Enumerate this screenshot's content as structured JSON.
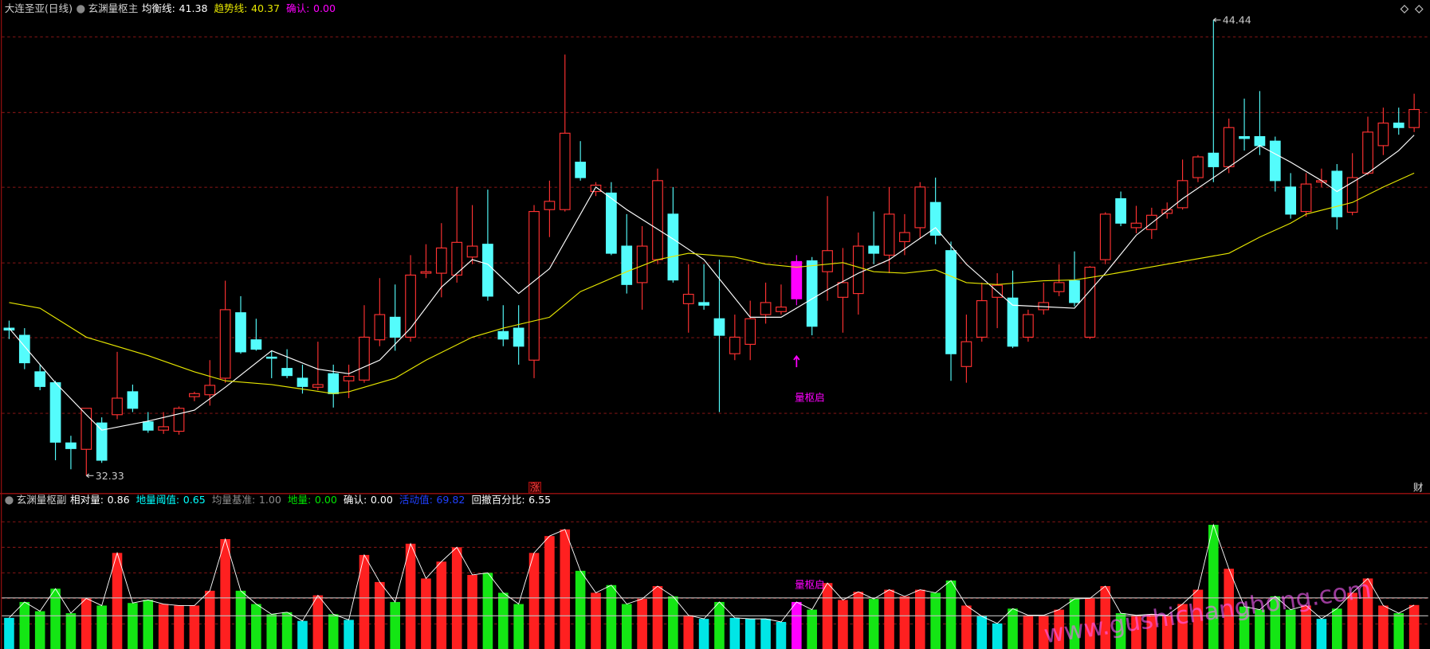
{
  "chart_data": [
    {
      "type": "candlestick",
      "title": "大连圣亚(日线)",
      "subtitle": "玄渊量枢主",
      "indicators": [
        {
          "name": "均衡线:",
          "value": 41.38,
          "color": "#ffffff",
          "x": [
            0,
            3,
            5,
            6,
            9,
            12,
            14,
            17,
            20,
            22,
            24,
            26,
            28,
            30,
            31,
            33,
            35,
            38,
            40,
            43,
            45,
            48,
            50,
            53,
            55,
            57,
            60,
            62,
            65,
            69,
            71,
            73,
            76,
            78,
            81,
            83,
            85,
            86,
            88,
            90,
            91
          ],
          "values": [
            36.25,
            34.8,
            33.95,
            33.54,
            33.78,
            34.07,
            34.68,
            35.65,
            35.16,
            35.04,
            35.4,
            36.25,
            37.34,
            38.07,
            37.95,
            37.17,
            37.83,
            40.0,
            39.4,
            38.62,
            38.07,
            36.54,
            36.54,
            37.27,
            37.71,
            38.07,
            38.92,
            37.95,
            36.86,
            36.78,
            37.71,
            38.72,
            39.69,
            40.25,
            41.1,
            40.66,
            40.17,
            39.88,
            40.37,
            40.97,
            41.38
          ]
        },
        {
          "name": "趋势线:",
          "value": 40.37,
          "color": "#e6e600",
          "x": [
            0,
            2,
            5,
            9,
            12,
            14,
            17,
            21,
            22,
            25,
            27,
            30,
            32,
            35,
            37,
            40,
            42,
            44,
            47,
            49,
            51,
            54,
            56,
            58,
            60,
            62,
            64,
            67,
            69,
            71,
            75,
            79,
            81,
            83,
            84,
            87,
            89,
            91
          ],
          "values": [
            36.93,
            36.78,
            36.01,
            35.52,
            35.09,
            34.85,
            34.75,
            34.51,
            34.56,
            34.92,
            35.4,
            36.01,
            36.25,
            36.54,
            37.22,
            37.75,
            38.07,
            38.24,
            38.14,
            37.95,
            37.87,
            37.99,
            37.75,
            37.71,
            37.8,
            37.46,
            37.41,
            37.51,
            37.53,
            37.66,
            37.95,
            38.24,
            38.67,
            39.04,
            39.28,
            39.59,
            40.0,
            40.37
          ]
        },
        {
          "name": "确认:",
          "value": 0,
          "value_label": "0.00",
          "color": "#ff00ff"
        }
      ],
      "open": [
        36.25,
        36.06,
        35.09,
        34.8,
        33.2,
        33.03,
        33.73,
        33.95,
        34.56,
        33.76,
        33.54,
        33.51,
        34.43,
        34.48,
        34.92,
        36.66,
        35.94,
        35.48,
        35.18,
        34.92,
        34.68,
        35.04,
        34.85,
        34.87,
        35.94,
        36.54,
        36.01,
        37.71,
        37.71,
        37.66,
        38.14,
        38.48,
        36.16,
        36.25,
        35.4,
        39.4,
        39.4,
        40.66,
        39.88,
        39.84,
        38.43,
        37.46,
        38.07,
        39.28,
        36.9,
        36.93,
        36.5,
        35.57,
        35.82,
        36.61,
        36.69,
        37.03,
        38.04,
        37.75,
        37.07,
        37.17,
        38.43,
        38.19,
        38.55,
        38.92,
        39.59,
        38.31,
        35.23,
        36.01,
        37.07,
        37.05,
        36.01,
        36.74,
        37.22,
        37.51,
        36.01,
        38.07,
        39.69,
        38.92,
        38.87,
        39.3,
        39.45,
        40.25,
        40.9,
        40.54,
        41.34,
        41.34,
        41.22,
        40.0,
        39.35,
        40.13,
        40.42,
        39.33,
        40.37,
        41.1,
        41.7,
        41.58
      ],
      "high": [
        36.45,
        36.25,
        35.28,
        34.85,
        33.39,
        34.12,
        33.88,
        35.62,
        34.75,
        34.02,
        34.02,
        34.17,
        34.56,
        35.4,
        37.51,
        37.1,
        36.5,
        35.65,
        35.69,
        35.28,
        35.89,
        35.28,
        35.28,
        36.86,
        37.58,
        37.41,
        38.19,
        38.48,
        39.04,
        40.0,
        39.52,
        39.93,
        36.86,
        36.86,
        39.52,
        40.17,
        43.52,
        41.22,
        40.13,
        40.13,
        39.28,
        38.96,
        40.49,
        40.0,
        37.95,
        37.95,
        38.07,
        36.61,
        36.98,
        37.46,
        37.41,
        38.19,
        38.14,
        39.76,
        38.38,
        38.79,
        39.35,
        40.0,
        39.28,
        40.13,
        40.25,
        38.55,
        36.61,
        37.46,
        37.71,
        37.78,
        36.74,
        37.46,
        37.95,
        38.29,
        37.9,
        39.33,
        39.88,
        39.5,
        39.45,
        39.59,
        40.73,
        40.85,
        44.44,
        41.82,
        42.35,
        42.55,
        41.34,
        40.37,
        40.37,
        40.49,
        40.61,
        40.9,
        41.87,
        42.11,
        42.11,
        42.48
      ],
      "low": [
        35.96,
        35.16,
        34.6,
        32.74,
        32.5,
        32.33,
        32.67,
        33.83,
        34.02,
        33.47,
        33.44,
        33.42,
        34.31,
        34.19,
        34.8,
        35.57,
        35.65,
        34.92,
        34.92,
        34.51,
        34.6,
        34.14,
        34.39,
        34.8,
        35.77,
        35.65,
        35.89,
        37.58,
        37.07,
        37.46,
        37.95,
        36.98,
        35.77,
        35.28,
        34.92,
        38.67,
        39.35,
        40.17,
        39.76,
        38.19,
        37.17,
        36.74,
        37.95,
        37.46,
        36.13,
        36.74,
        34.02,
        35.4,
        35.4,
        36.37,
        36.61,
        36.86,
        36.06,
        36.98,
        36.13,
        36.61,
        37.95,
        37.71,
        38.19,
        38.62,
        38.48,
        34.85,
        34.8,
        35.89,
        36.25,
        35.72,
        35.89,
        36.61,
        37.1,
        36.83,
        35.96,
        37.95,
        38.96,
        38.77,
        38.62,
        39.16,
        39.4,
        40.13,
        40.13,
        40.37,
        40.97,
        40.85,
        39.88,
        39.16,
        39.21,
        40.0,
        38.87,
        39.25,
        40.32,
        40.85,
        41.39,
        41.46
      ],
      "close": [
        36.2,
        35.33,
        34.7,
        33.22,
        33.05,
        34.12,
        32.74,
        34.39,
        34.12,
        33.54,
        33.63,
        34.12,
        34.51,
        34.73,
        36.74,
        35.62,
        35.69,
        35.45,
        34.99,
        34.7,
        34.75,
        34.51,
        34.97,
        36.01,
        36.61,
        36.01,
        37.66,
        37.75,
        38.38,
        38.53,
        38.43,
        37.1,
        35.96,
        35.77,
        39.35,
        39.62,
        41.43,
        40.25,
        40.05,
        38.24,
        37.41,
        38.43,
        40.17,
        37.53,
        37.15,
        36.86,
        36.06,
        36.01,
        36.5,
        36.93,
        36.81,
        38.02,
        36.3,
        38.31,
        37.46,
        38.43,
        38.24,
        39.28,
        38.79,
        40.0,
        38.72,
        35.57,
        35.89,
        36.98,
        37.39,
        35.77,
        36.61,
        36.93,
        37.46,
        36.93,
        37.87,
        39.28,
        39.04,
        39.04,
        39.25,
        39.4,
        40.17,
        40.8,
        40.54,
        41.58,
        41.29,
        41.1,
        40.17,
        39.28,
        40.08,
        40.17,
        39.21,
        40.25,
        41.46,
        41.7,
        41.58,
        42.06
      ],
      "up_color": "#ff3232",
      "down_color": "#54fcfc",
      "ylim": [
        31.89,
        44.97
      ],
      "yticks": [
        34,
        36,
        38,
        40,
        42,
        44
      ],
      "grid": true,
      "max_label": {
        "index": 78,
        "value": 44.44
      },
      "min_label": {
        "index": 5,
        "value": 32.33
      },
      "signal": {
        "index": 51,
        "text": "量枢启",
        "color": "#ff00ff"
      },
      "badges": [
        "涨",
        "财"
      ]
    },
    {
      "type": "bar",
      "title": "玄渊量枢副",
      "indicators": [
        {
          "name": "相对量:",
          "value": 0.86,
          "color": "#ffffff"
        },
        {
          "name": "地量阈值:",
          "value": 0.65,
          "color": "#00ffff",
          "line": true
        },
        {
          "name": "均量基准:",
          "value": 1,
          "value_label": "1.00",
          "color": "#8c8c8c",
          "line": true
        },
        {
          "name": "地量:",
          "value": 0,
          "value_label": "0.00",
          "color": "#00e600"
        },
        {
          "name": "确认:",
          "value": 0,
          "value_label": "0.00",
          "color": "#ffffff"
        },
        {
          "name": "活动值:",
          "value": 69.82,
          "color": "#2040ff"
        },
        {
          "name": "回撤百分比:",
          "value": 6.55,
          "color": "#ffffff"
        }
      ],
      "values": [
        0.61,
        0.92,
        0.74,
        1.18,
        0.7,
        0.99,
        0.85,
        1.88,
        0.9,
        0.96,
        0.88,
        0.85,
        0.85,
        1.14,
        2.15,
        1.14,
        0.88,
        0.68,
        0.72,
        0.55,
        1.05,
        0.68,
        0.57,
        1.84,
        1.31,
        0.92,
        2.06,
        1.38,
        1.71,
        1.99,
        1.45,
        1.49,
        1.1,
        0.88,
        1.88,
        2.21,
        2.34,
        1.53,
        1.1,
        1.25,
        0.88,
        0.98,
        1.23,
        1.03,
        0.66,
        0.59,
        0.92,
        0.61,
        0.59,
        0.59,
        0.53,
        0.92,
        0.77,
        1.29,
        0.96,
        1.12,
        0.98,
        1.16,
        1.03,
        1.16,
        1.1,
        1.34,
        0.85,
        0.64,
        0.5,
        0.79,
        0.66,
        0.66,
        0.77,
        0.98,
        0.99,
        1.23,
        0.7,
        0.66,
        0.68,
        0.66,
        0.88,
        1.16,
        2.43,
        1.57,
        0.83,
        0.77,
        1.03,
        0.77,
        0.85,
        0.59,
        0.79,
        1.1,
        1.38,
        0.85,
        0.7,
        0.86
      ],
      "up_color": "#ff2020",
      "down_color": "#14e614",
      "low_color": "#00e6e6",
      "ylim": [
        0,
        2.8
      ],
      "yticks": [
        0.5,
        1,
        1.5,
        2,
        2.5
      ],
      "grid": true,
      "signal_text": "量枢启",
      "watermark": "www.gushichanghong.com"
    }
  ]
}
